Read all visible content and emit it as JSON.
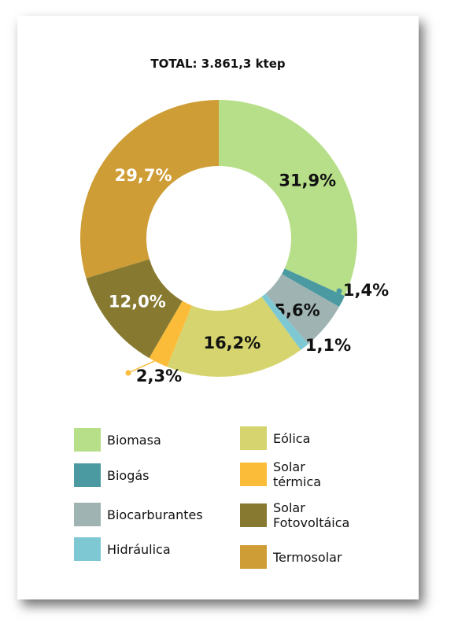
{
  "chart_data": {
    "type": "pie",
    "title": "TOTAL: 3.861,3 ktep",
    "categories": [
      "Biomasa",
      "Biogás",
      "Biocarburantes",
      "Hidráulica",
      "Eólica",
      "Solar térmica",
      "Solar Fotovoltáica",
      "Termosolar"
    ],
    "values": [
      31.9,
      1.4,
      5.6,
      1.1,
      16.2,
      2.3,
      12.0,
      29.7
    ],
    "value_labels": [
      "31,9%",
      "1,4%",
      "5,6%",
      "1,1%",
      "16,2%",
      "2,3%",
      "12,0%",
      "29,7%"
    ],
    "colors": [
      "#b7de88",
      "#4b9aa2",
      "#9fb3b3",
      "#7ec8d4",
      "#d6d46e",
      "#fbbc39",
      "#877a30",
      "#cf9d36"
    ],
    "legend_placement": "bottom"
  },
  "legend": [
    {
      "label": "Biomasa",
      "color": "#b7de88"
    },
    {
      "label": "Biogás",
      "color": "#4b9aa2"
    },
    {
      "label": "Biocarburantes",
      "color": "#9fb3b3"
    },
    {
      "label": "Hidráulica",
      "color": "#7ec8d4"
    },
    {
      "label": "Eólica",
      "color": "#d6d46e"
    },
    {
      "label": "Solar\ntérmica",
      "color": "#fbbc39"
    },
    {
      "label": "Solar\nFotovoltáica",
      "color": "#877a30"
    },
    {
      "label": "Termosolar",
      "color": "#cf9d36"
    }
  ]
}
